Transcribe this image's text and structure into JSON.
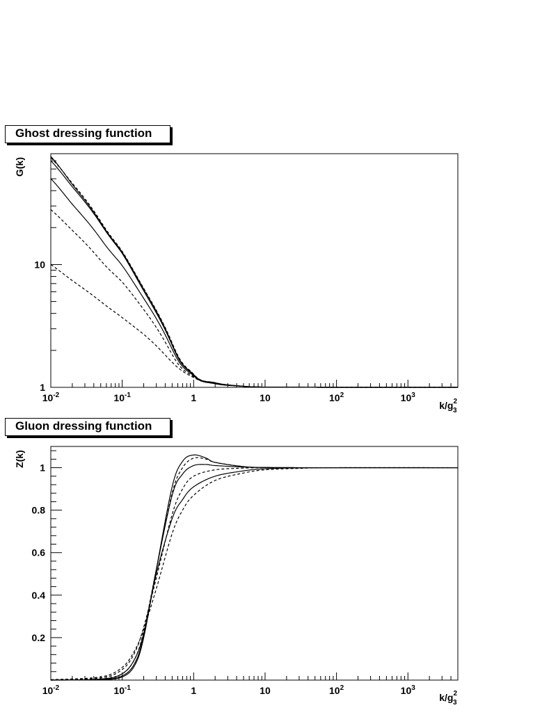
{
  "chart_data": [
    {
      "type": "line",
      "title": "Ghost dressing function",
      "ylabel": "G(k)",
      "xlabel": "k/g_3^2",
      "x_scale": "log",
      "y_scale": "log",
      "xlim": [
        0.01,
        5000
      ],
      "ylim": [
        1,
        80
      ],
      "x_tick_labels": [
        {
          "value": 0.01,
          "base": "10",
          "exp": "-2"
        },
        {
          "value": 0.1,
          "base": "10",
          "exp": "-1"
        },
        {
          "value": 1,
          "base": "1",
          "exp": ""
        },
        {
          "value": 10,
          "base": "10",
          "exp": ""
        },
        {
          "value": 100,
          "base": "10",
          "exp": "2"
        },
        {
          "value": 1000,
          "base": "10",
          "exp": "3"
        }
      ],
      "y_tick_labels": [
        {
          "value": 1,
          "text": "1"
        },
        {
          "value": 10,
          "text": "10"
        }
      ],
      "series": [
        {
          "style": "solid",
          "x": [
            0.01,
            0.02,
            0.05,
            0.1,
            0.2,
            0.5,
            1,
            2,
            5,
            10,
            100,
            5000
          ],
          "y": [
            76,
            45,
            22,
            12.6,
            6.3,
            2.25,
            1.27,
            1.09,
            1.02,
            1.005,
            1.0,
            1.0
          ]
        },
        {
          "style": "solid",
          "x": [
            0.01,
            0.02,
            0.05,
            0.1,
            0.2,
            0.5,
            1,
            2,
            5,
            10,
            100,
            5000
          ],
          "y": [
            70,
            43,
            21.5,
            12.3,
            6.1,
            2.2,
            1.26,
            1.08,
            1.02,
            1.005,
            1.0,
            1.0
          ]
        },
        {
          "style": "solid",
          "x": [
            0.01,
            0.02,
            0.05,
            0.1,
            0.2,
            0.5,
            1,
            2,
            5,
            10,
            100,
            5000
          ],
          "y": [
            50,
            31,
            16.2,
            9.8,
            5.3,
            2.05,
            1.24,
            1.07,
            1.02,
            1.005,
            1.0,
            1.0
          ]
        },
        {
          "style": "dashed",
          "x": [
            0.01,
            0.02,
            0.05,
            0.1,
            0.2,
            0.5,
            1,
            2,
            5,
            10,
            100,
            5000
          ],
          "y": [
            74,
            46,
            22.5,
            12.8,
            6.4,
            2.3,
            1.28,
            1.09,
            1.02,
            1.005,
            1.0,
            1.0
          ]
        },
        {
          "style": "dashed",
          "x": [
            0.01,
            0.02,
            0.05,
            0.1,
            0.2,
            0.5,
            1,
            2,
            5,
            10,
            100,
            5000
          ],
          "y": [
            28,
            19,
            10.8,
            7.2,
            4.3,
            1.85,
            1.22,
            1.07,
            1.02,
            1.005,
            1.0,
            1.0
          ]
        },
        {
          "style": "dashed",
          "x": [
            0.01,
            0.02,
            0.05,
            0.1,
            0.2,
            0.5,
            1,
            2,
            5,
            10,
            100,
            5000
          ],
          "y": [
            10,
            7.4,
            5.0,
            3.7,
            2.7,
            1.6,
            1.2,
            1.07,
            1.02,
            1.005,
            1.0,
            1.0
          ]
        }
      ]
    },
    {
      "type": "line",
      "title": "Gluon dressing function",
      "ylabel": "Z(k)",
      "xlabel": "k/g_3^2",
      "x_scale": "log",
      "y_scale": "linear",
      "xlim": [
        0.01,
        5000
      ],
      "ylim": [
        0,
        1.1
      ],
      "x_tick_labels": [
        {
          "value": 0.01,
          "base": "10",
          "exp": "-2"
        },
        {
          "value": 0.1,
          "base": "10",
          "exp": "-1"
        },
        {
          "value": 1,
          "base": "1",
          "exp": ""
        },
        {
          "value": 10,
          "base": "10",
          "exp": ""
        },
        {
          "value": 100,
          "base": "10",
          "exp": "2"
        },
        {
          "value": 1000,
          "base": "10",
          "exp": "3"
        }
      ],
      "y_tick_labels": [
        {
          "value": 0.2,
          "text": "0.2"
        },
        {
          "value": 0.4,
          "text": "0.4"
        },
        {
          "value": 0.6,
          "text": "0.6"
        },
        {
          "value": 0.8,
          "text": "0.8"
        },
        {
          "value": 1,
          "text": "1"
        }
      ],
      "series": [
        {
          "style": "solid",
          "x": [
            0.01,
            0.05,
            0.1,
            0.15,
            0.2,
            0.3,
            0.5,
            0.7,
            1,
            1.5,
            2,
            5,
            10,
            30,
            5000
          ],
          "y": [
            0,
            0.002,
            0.015,
            0.07,
            0.2,
            0.52,
            0.91,
            1.03,
            1.06,
            1.045,
            1.025,
            1.005,
            1.001,
            1.0,
            1.0
          ]
        },
        {
          "style": "solid",
          "x": [
            0.01,
            0.05,
            0.1,
            0.15,
            0.2,
            0.3,
            0.5,
            0.7,
            1,
            1.5,
            2,
            5,
            10,
            30,
            5000
          ],
          "y": [
            0,
            0.003,
            0.02,
            0.08,
            0.21,
            0.52,
            0.87,
            0.97,
            1.01,
            1.015,
            1.01,
            1.003,
            1.001,
            1.0,
            1.0
          ]
        },
        {
          "style": "solid",
          "x": [
            0.01,
            0.05,
            0.1,
            0.15,
            0.2,
            0.3,
            0.5,
            0.7,
            1,
            2,
            5,
            10,
            30,
            100,
            5000
          ],
          "y": [
            0,
            0.005,
            0.03,
            0.1,
            0.22,
            0.5,
            0.76,
            0.85,
            0.91,
            0.96,
            0.985,
            0.995,
            0.999,
            1.0,
            1.0
          ]
        },
        {
          "style": "dashed",
          "x": [
            0.01,
            0.05,
            0.1,
            0.15,
            0.2,
            0.3,
            0.5,
            0.7,
            1,
            1.5,
            2,
            5,
            10,
            30,
            5000
          ],
          "y": [
            0,
            0.004,
            0.03,
            0.1,
            0.23,
            0.52,
            0.88,
            1.0,
            1.045,
            1.04,
            1.025,
            1.005,
            1.001,
            1.0,
            1.0
          ]
        },
        {
          "style": "dashed",
          "x": [
            0.01,
            0.05,
            0.1,
            0.15,
            0.2,
            0.3,
            0.5,
            0.7,
            1,
            2,
            5,
            10,
            30,
            100,
            5000
          ],
          "y": [
            0.001,
            0.01,
            0.05,
            0.13,
            0.25,
            0.48,
            0.78,
            0.9,
            0.96,
            0.99,
            0.998,
            1.0,
            1.0,
            1.0,
            1.0
          ]
        },
        {
          "style": "dashed",
          "x": [
            0.01,
            0.05,
            0.1,
            0.15,
            0.2,
            0.3,
            0.5,
            0.7,
            1,
            2,
            5,
            10,
            30,
            100,
            5000
          ],
          "y": [
            0.002,
            0.015,
            0.06,
            0.14,
            0.24,
            0.43,
            0.69,
            0.8,
            0.87,
            0.94,
            0.975,
            0.99,
            0.997,
            1.0,
            1.0
          ]
        }
      ]
    }
  ]
}
